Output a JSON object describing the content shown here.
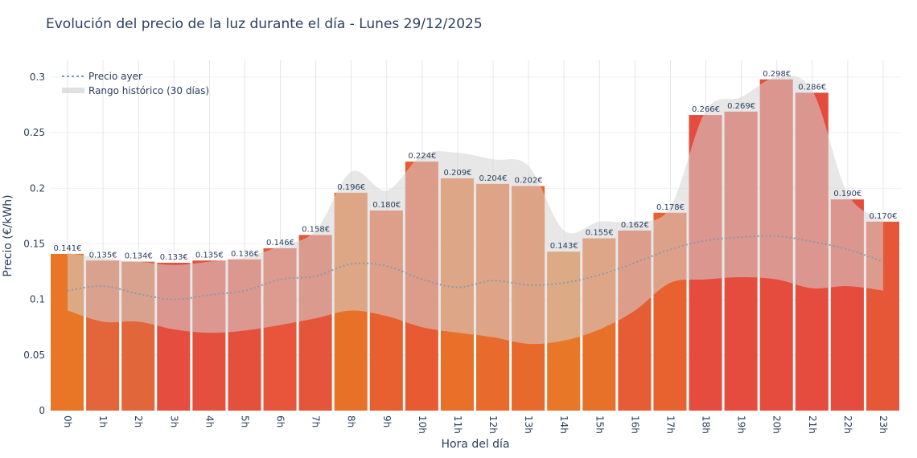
{
  "chart_data": {
    "type": "bar",
    "title": "Evolución del precio de la luz durante el día - Lunes 29/12/2025",
    "xlabel": "Hora del día",
    "ylabel": "Precio (€/kWh)",
    "ylim": [
      0,
      0.315
    ],
    "yticks": [
      0,
      0.05,
      0.1,
      0.15,
      0.2,
      0.25,
      0.3
    ],
    "ytick_labels": [
      "0",
      "0.05",
      "0.1",
      "0.15",
      "0.2",
      "0.25",
      "0.3"
    ],
    "grid": true,
    "legend_position": "top-left",
    "categories": [
      "0h",
      "1h",
      "2h",
      "3h",
      "4h",
      "5h",
      "6h",
      "7h",
      "8h",
      "9h",
      "10h",
      "11h",
      "12h",
      "13h",
      "14h",
      "15h",
      "16h",
      "17h",
      "18h",
      "19h",
      "20h",
      "21h",
      "22h",
      "23h"
    ],
    "values": [
      0.141,
      0.135,
      0.134,
      0.133,
      0.135,
      0.136,
      0.146,
      0.158,
      0.196,
      0.18,
      0.224,
      0.209,
      0.204,
      0.202,
      0.143,
      0.155,
      0.162,
      0.178,
      0.266,
      0.269,
      0.298,
      0.286,
      0.19,
      0.17
    ],
    "data_labels": [
      "0.141€",
      "0.135€",
      "0.134€",
      "0.133€",
      "0.135€",
      "0.136€",
      "0.146€",
      "0.158€",
      "0.196€",
      "0.180€",
      "0.224€",
      "0.209€",
      "0.204€",
      "0.202€",
      "0.143€",
      "0.155€",
      "0.162€",
      "0.178€",
      "0.266€",
      "0.269€",
      "0.298€",
      "0.286€",
      "0.190€",
      "0.170€"
    ],
    "bar_colors": [
      "#e97627",
      "#e3663a",
      "#e1673a",
      "#e54d3e",
      "#e54f3e",
      "#e5503c",
      "#e8553a",
      "#e5553a",
      "#e87128",
      "#e8602f",
      "#e85a32",
      "#e87028",
      "#e86a2c",
      "#e8692c",
      "#e87828",
      "#e8712a",
      "#e65c34",
      "#e8622f",
      "#e54c3e",
      "#e54c3e",
      "#e54c3e",
      "#e54c3e",
      "#e54c3e",
      "#e65738"
    ],
    "series": [
      {
        "name": "Precio ayer",
        "type": "line",
        "style": "dotted",
        "color": "#8a9bab",
        "values": [
          0.108,
          0.112,
          0.105,
          0.1,
          0.104,
          0.108,
          0.118,
          0.121,
          0.132,
          0.13,
          0.118,
          0.111,
          0.117,
          0.113,
          0.115,
          0.122,
          0.133,
          0.145,
          0.153,
          0.156,
          0.157,
          0.152,
          0.145,
          0.134
        ]
      },
      {
        "name": "Rango histórico (30 días)",
        "type": "band",
        "color": "#d3d3d3",
        "upper": [
          0.142,
          0.137,
          0.134,
          0.131,
          0.134,
          0.138,
          0.148,
          0.162,
          0.215,
          0.198,
          0.23,
          0.232,
          0.226,
          0.22,
          0.162,
          0.17,
          0.17,
          0.183,
          0.27,
          0.282,
          0.3,
          0.288,
          0.195,
          0.172
        ],
        "lower": [
          0.09,
          0.08,
          0.08,
          0.073,
          0.07,
          0.072,
          0.077,
          0.083,
          0.09,
          0.085,
          0.075,
          0.07,
          0.066,
          0.06,
          0.063,
          0.073,
          0.09,
          0.115,
          0.118,
          0.12,
          0.118,
          0.11,
          0.112,
          0.108
        ]
      }
    ]
  }
}
